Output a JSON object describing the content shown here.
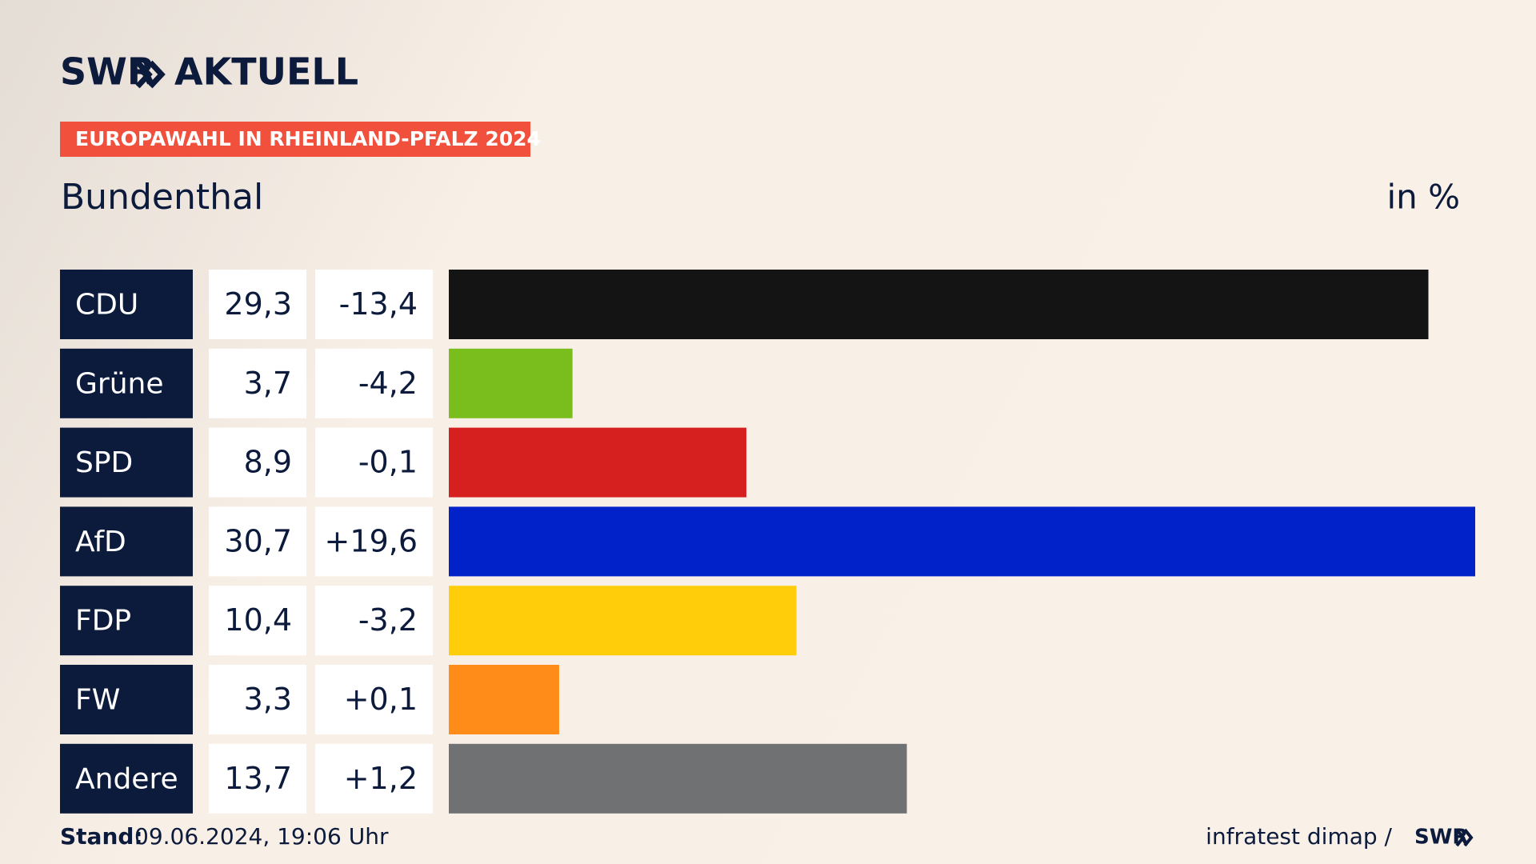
{
  "header": {
    "brand": "SWR",
    "product": "AKTUELL",
    "tag": "EUROPAWAHL IN RHEINLAND-PFALZ 2024"
  },
  "chart_data": {
    "type": "bar",
    "orientation": "horizontal",
    "title": "Bundenthal",
    "unit": "in %",
    "categories": [
      "CDU",
      "Grüne",
      "SPD",
      "AfD",
      "FDP",
      "FW",
      "Andere"
    ],
    "values": [
      29.3,
      3.7,
      8.9,
      30.7,
      10.4,
      3.3,
      13.7
    ],
    "value_labels": [
      "29,3",
      "3,7",
      "8,9",
      "30,7",
      "10,4",
      "3,3",
      "13,7"
    ],
    "changes": [
      -13.4,
      -4.2,
      -0.1,
      19.6,
      -3.2,
      0.1,
      1.2
    ],
    "change_labels": [
      "-13,4",
      "-4,2",
      "-0,1",
      "+19,6",
      "-3,2",
      "+0,1",
      "+1,2"
    ],
    "colors": [
      "#141414",
      "#7abe1e",
      "#d61f1f",
      "#0022c8",
      "#ffcd0a",
      "#ff8c19",
      "#707173"
    ]
  },
  "footer": {
    "stand_label": "Stand:",
    "stand": "09.06.2024, 19:06 Uhr",
    "source": "infratest dimap /",
    "source_brand": "SWR"
  }
}
